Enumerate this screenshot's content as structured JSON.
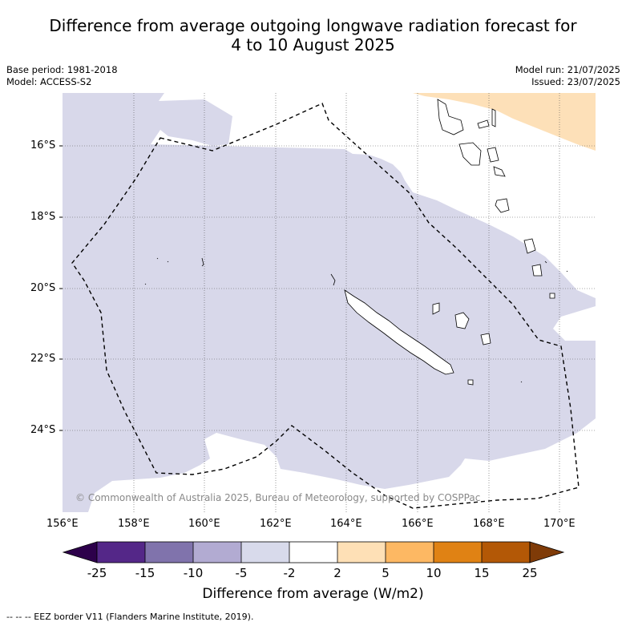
{
  "title_line1": "Difference from average outgoing longwave radiation forecast for",
  "title_line2": "4 to 10 August 2025",
  "meta": {
    "base_period": "Base period: 1981-2018",
    "model": "Model: ACCESS-S2",
    "model_run": "Model run: 21/07/2025",
    "issued": "Issued: 23/07/2025"
  },
  "map": {
    "lat_labels": [
      "16°S",
      "18°S",
      "20°S",
      "22°S",
      "24°S"
    ],
    "lon_labels": [
      "156°E",
      "158°E",
      "160°E",
      "162°E",
      "164°E",
      "166°E",
      "168°E",
      "170°E"
    ],
    "copyright": "© Commonwealth of Australia 2025, Bureau of Meteorology, supported by COSPPac",
    "colors": {
      "light_purple": "#d8d8ea",
      "light_orange": "#fde0b8",
      "eez_line": "#000000"
    }
  },
  "colorbar": {
    "title": "Difference from average (W/m2)",
    "ticks": [
      "-25",
      "-15",
      "-10",
      "-5",
      "-2",
      "2",
      "5",
      "10",
      "15",
      "25"
    ],
    "colors": [
      "#2d004b",
      "#542788",
      "#8073ac",
      "#b2abd2",
      "#d8daeb",
      "#ffffff",
      "#fee0b6",
      "#fdb863",
      "#e08214",
      "#b35806",
      "#7f3b08"
    ]
  },
  "footnote": "--  --  -- EEZ border V11 (Flanders Marine Institute, 2019)."
}
